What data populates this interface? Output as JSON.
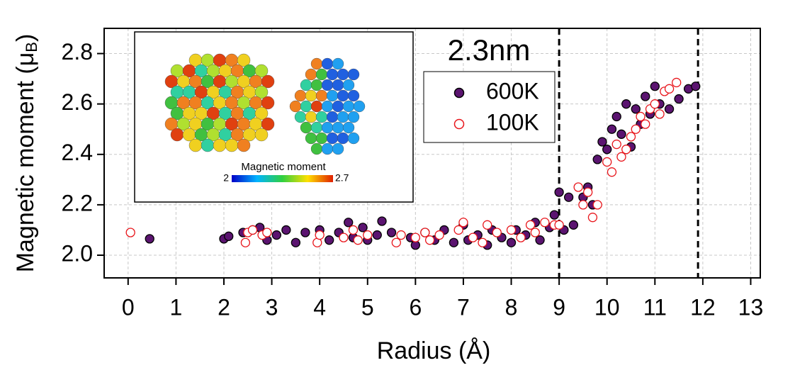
{
  "chart_data": {
    "type": "scatter",
    "annotation": "2.3nm",
    "xlabel": "Radius (Å)",
    "ylabel": [
      "Magnetic moment (μ",
      "B",
      ")"
    ],
    "xlim": [
      -0.5,
      13.2
    ],
    "ylim": [
      1.91,
      2.9
    ],
    "xticks": [
      0,
      1,
      2,
      3,
      4,
      5,
      6,
      7,
      8,
      9,
      10,
      11,
      12,
      13
    ],
    "yticks": [
      {
        "value": 2,
        "label": "2.0"
      },
      2.2,
      2.4,
      2.6,
      2.8
    ],
    "grid": true,
    "vlines": [
      9,
      11.9
    ],
    "inset": {
      "colorbar_label": "Magnetic moment",
      "colorbar_min": "2",
      "colorbar_max": "2.7"
    },
    "series": [
      {
        "name": "600K",
        "color": "#5b1470",
        "edge": "#000000",
        "x": [
          0.45,
          2.0,
          2.1,
          2.4,
          2.6,
          2.75,
          2.9,
          3.1,
          3.3,
          3.5,
          3.7,
          4.0,
          4.2,
          4.4,
          4.6,
          4.7,
          4.9,
          5.0,
          5.2,
          5.3,
          5.5,
          5.9,
          6.0,
          6.2,
          6.4,
          6.6,
          6.8,
          7.0,
          7.1,
          7.3,
          7.5,
          7.6,
          7.8,
          8.0,
          8.1,
          8.3,
          8.5,
          8.6,
          8.8,
          8.9,
          9.0,
          9.1,
          9.2,
          9.3,
          9.5,
          9.6,
          9.7,
          9.8,
          9.9,
          10.0,
          10.1,
          10.2,
          10.3,
          10.4,
          10.5,
          10.6,
          10.7,
          10.8,
          10.9,
          11.0,
          11.1,
          11.3,
          11.5,
          11.7,
          11.85
        ],
        "values": [
          2.065,
          2.065,
          2.075,
          2.09,
          2.1,
          2.11,
          2.06,
          2.08,
          2.1,
          2.05,
          2.09,
          2.1,
          2.06,
          2.09,
          2.13,
          2.07,
          2.11,
          2.06,
          2.08,
          2.135,
          2.09,
          2.07,
          2.04,
          2.09,
          2.06,
          2.1,
          2.05,
          2.12,
          2.06,
          2.08,
          2.04,
          2.1,
          2.07,
          2.05,
          2.1,
          2.08,
          2.13,
          2.06,
          2.11,
          2.16,
          2.25,
          2.1,
          2.23,
          2.12,
          2.23,
          2.27,
          2.2,
          2.38,
          2.45,
          2.42,
          2.5,
          2.55,
          2.48,
          2.6,
          2.43,
          2.58,
          2.52,
          2.63,
          2.56,
          2.67,
          2.6,
          2.58,
          2.62,
          2.66,
          2.67
        ]
      },
      {
        "name": "100K",
        "color": "#ffffff",
        "edge": "#e8151b",
        "x": [
          0.05,
          2.45,
          2.5,
          2.6,
          2.8,
          2.9,
          3.95,
          4.0,
          4.5,
          4.7,
          4.8,
          5.0,
          5.6,
          5.7,
          6.0,
          6.2,
          6.3,
          6.5,
          6.9,
          7.0,
          7.2,
          7.4,
          7.5,
          7.7,
          8.0,
          8.2,
          8.4,
          8.5,
          8.7,
          8.9,
          9.0,
          9.4,
          9.5,
          9.6,
          9.7,
          9.8,
          10.0,
          10.1,
          10.2,
          10.3,
          10.4,
          10.5,
          10.6,
          10.7,
          10.8,
          10.9,
          11.0,
          11.1,
          11.2,
          11.3,
          11.45
        ],
        "values": [
          2.09,
          2.05,
          2.09,
          2.1,
          2.08,
          2.09,
          2.05,
          2.08,
          2.07,
          2.1,
          2.06,
          2.08,
          2.05,
          2.08,
          2.07,
          2.09,
          2.06,
          2.08,
          2.1,
          2.13,
          2.07,
          2.05,
          2.12,
          2.09,
          2.1,
          2.07,
          2.12,
          2.09,
          2.13,
          2.12,
          2.12,
          2.27,
          2.2,
          2.25,
          2.15,
          2.2,
          2.37,
          2.33,
          2.44,
          2.39,
          2.42,
          2.47,
          2.5,
          2.55,
          2.52,
          2.58,
          2.6,
          2.56,
          2.65,
          2.66,
          2.685
        ]
      }
    ]
  }
}
